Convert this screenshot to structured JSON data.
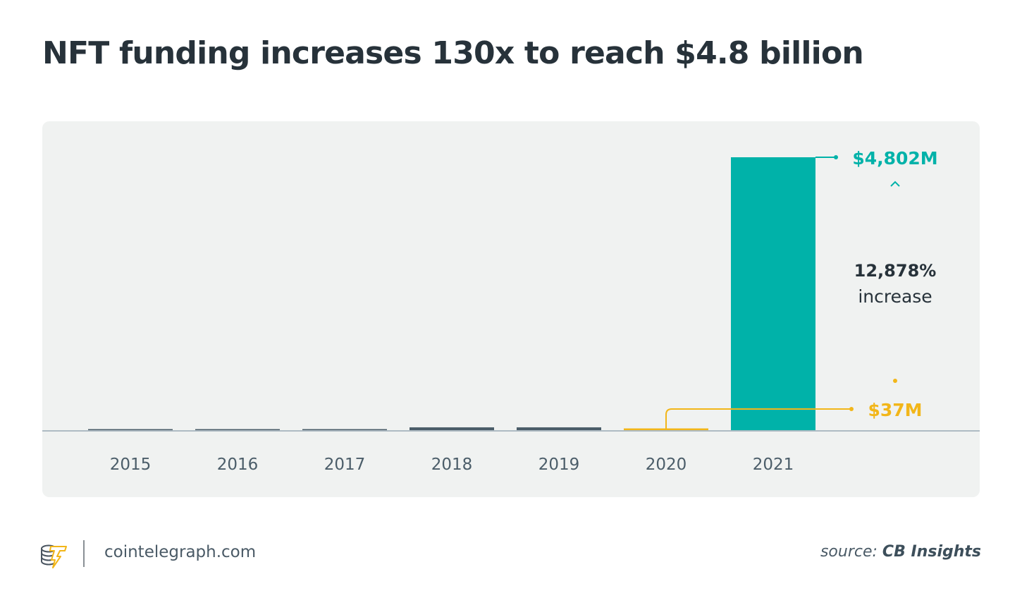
{
  "chart_data": {
    "type": "bar",
    "title": "NFT funding increases 130x to reach $4.8 billion",
    "xlabel": "",
    "ylabel": "",
    "categories": [
      "2015",
      "2016",
      "2017",
      "2018",
      "2019",
      "2020",
      "2021"
    ],
    "values": [
      10,
      10,
      10,
      50,
      50,
      37,
      4802
    ],
    "value_unit": "$M",
    "values_note": "2015-2019 values estimated from bar heights; 2020 and 2021 labeled",
    "ylim": [
      0,
      4802
    ],
    "grid": false,
    "annotations": [
      {
        "target": "2021",
        "text": "$4,802M",
        "color": "#00b2a9"
      },
      {
        "target": "2020",
        "text": "$37M",
        "color": "#f2b619"
      },
      {
        "text_bold": "12,878%",
        "text": "increase",
        "color": "#27323a"
      }
    ],
    "colors": {
      "default_bar": "#4b5d69",
      "highlight_2020": "#f2b619",
      "highlight_2021": "#00b2a9",
      "axis": "#aebbc3",
      "tick_label": "#4b5d69"
    }
  },
  "footer": {
    "site": "cointelegraph.com",
    "source_prefix": "source:",
    "source_name": "CB Insights"
  }
}
